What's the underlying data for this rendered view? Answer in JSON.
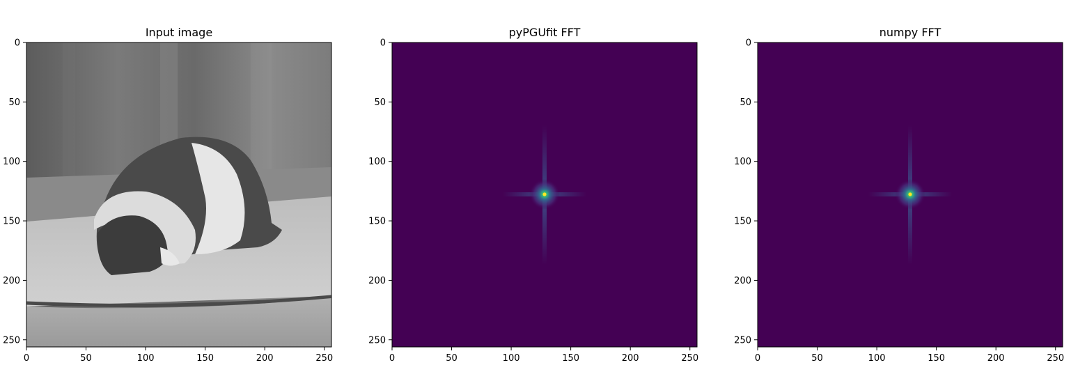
{
  "chart_data": [
    {
      "type": "heatmap",
      "title": "Input image",
      "colormap": "gray",
      "content": "grayscale photo",
      "x_ticks": [
        0,
        50,
        100,
        150,
        200,
        250
      ],
      "y_ticks": [
        0,
        50,
        100,
        150,
        200,
        250
      ],
      "xlim": [
        0,
        256
      ],
      "ylim": [
        256,
        0
      ],
      "grid": false
    },
    {
      "type": "heatmap",
      "title": "pyPGUfit FFT",
      "colormap": "viridis",
      "content": "FFT magnitude spectrum, bright peak at center",
      "peak": [
        128,
        128
      ],
      "x_ticks": [
        0,
        50,
        100,
        150,
        200,
        250
      ],
      "y_ticks": [
        0,
        50,
        100,
        150,
        200,
        250
      ],
      "xlim": [
        0,
        256
      ],
      "ylim": [
        256,
        0
      ],
      "grid": false
    },
    {
      "type": "heatmap",
      "title": "numpy FFT",
      "colormap": "viridis",
      "content": "FFT magnitude spectrum, bright peak at center",
      "peak": [
        128,
        128
      ],
      "x_ticks": [
        0,
        50,
        100,
        150,
        200,
        250
      ],
      "y_ticks": [
        0,
        50,
        100,
        150,
        200,
        250
      ],
      "xlim": [
        0,
        256
      ],
      "ylim": [
        256,
        0
      ],
      "grid": false
    }
  ],
  "colors": {
    "viridis_background": "#440154",
    "viridis_peak": "#fde725",
    "viridis_mid": "#21918c"
  }
}
